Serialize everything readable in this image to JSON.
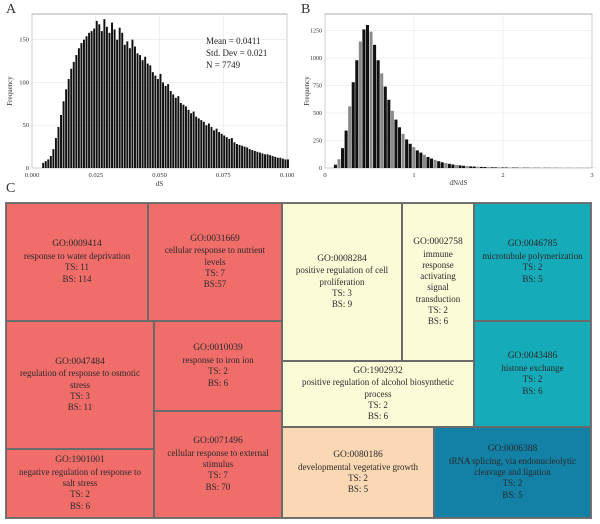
{
  "panels": {
    "a": "A",
    "b": "B",
    "c": "C"
  },
  "chart_data": [
    {
      "type": "bar",
      "panel": "A",
      "xlabel": "dS",
      "ylabel": "Frequency",
      "xlim": [
        0.0,
        0.1
      ],
      "ylim": [
        0,
        180
      ],
      "xticks": [
        "0.000",
        "0.025",
        "0.050",
        "0.075",
        "0.100"
      ],
      "yticks": [
        "0",
        "50",
        "100",
        "150"
      ],
      "annotations": [
        "Mean = 0.0411",
        "Std. Dev = 0.021",
        "N = 7749"
      ],
      "bin_start": 0.004,
      "bin_width": 0.001,
      "values": [
        6,
        8,
        10,
        14,
        22,
        35,
        48,
        62,
        78,
        92,
        104,
        116,
        124,
        132,
        140,
        146,
        150,
        154,
        158,
        160,
        163,
        172,
        168,
        160,
        174,
        165,
        158,
        170,
        162,
        150,
        164,
        158,
        144,
        148,
        140,
        150,
        142,
        134,
        132,
        126,
        130,
        122,
        120,
        112,
        108,
        104,
        110,
        100,
        96,
        98,
        90,
        86,
        82,
        84,
        76,
        74,
        72,
        68,
        64,
        66,
        60,
        58,
        56,
        54,
        50,
        52,
        48,
        44,
        46,
        42,
        40,
        38,
        36,
        34,
        35,
        30,
        28,
        27,
        26,
        25,
        24,
        22,
        21,
        20,
        19,
        18,
        17,
        16,
        16,
        15,
        14,
        13,
        12,
        12,
        11,
        10,
        10
      ]
    },
    {
      "type": "bar",
      "panel": "B",
      "xlabel": "dN/dS",
      "ylabel": "Frequency",
      "xlim": [
        0,
        3
      ],
      "ylim": [
        0,
        1400
      ],
      "xticks": [
        "0",
        "1",
        "2",
        "3"
      ],
      "yticks": [
        "0",
        "250",
        "500",
        "750",
        "1000",
        "1250"
      ],
      "bin_start": 0.1,
      "bin_width": 0.04,
      "values": [
        30,
        80,
        180,
        340,
        560,
        780,
        980,
        1150,
        1260,
        1300,
        1240,
        1120,
        980,
        860,
        740,
        620,
        520,
        440,
        370,
        310,
        260,
        220,
        190,
        160,
        140,
        120,
        100,
        86,
        74,
        62,
        52,
        45,
        38,
        32,
        28,
        24,
        20,
        17,
        15,
        13,
        11,
        10,
        9,
        8,
        7,
        6,
        6,
        5,
        5,
        4,
        4,
        4,
        3,
        3,
        3,
        3,
        2,
        2,
        2,
        2,
        2,
        2,
        2,
        1,
        1,
        1,
        1,
        1,
        1,
        1,
        1,
        1,
        1,
        1
      ]
    }
  ],
  "treemap": {
    "tiles": [
      {
        "id": "GO:0009414",
        "name": "response to water deprivation",
        "ts": "TS: 11",
        "bs": "BS: 114",
        "color": "#f16d6a"
      },
      {
        "id": "GO:0031669",
        "name": "cellular response to nutrient levels",
        "ts": "TS: 7",
        "bs": "BS:57",
        "color": "#f16d6a"
      },
      {
        "id": "GO:0047484",
        "name": "regulation of response to osmotic stress",
        "ts": "TS: 3",
        "bs": "BS: 11",
        "color": "#f16d6a"
      },
      {
        "id": "GO:0010039",
        "name": "response to iron ion",
        "ts": "TS: 2",
        "bs": "BS: 6",
        "color": "#f16d6a"
      },
      {
        "id": "GO:1901001",
        "name": "negative regulation of response to salt stress",
        "ts": "TS: 2",
        "bs": "BS: 6",
        "color": "#f16d6a"
      },
      {
        "id": "GO:0071496",
        "name": "cellular response to external stimulus",
        "ts": "TS: 7",
        "bs": "BS: 70",
        "color": "#f16d6a"
      },
      {
        "id": "GO:0008284",
        "name": "positive regulation of cell proliferation",
        "ts": "TS: 3",
        "bs": "BS: 9",
        "color": "#fcfbd8"
      },
      {
        "id": "GO:0002758",
        "name": "immune response activating signal transduction",
        "ts": "TS: 2",
        "bs": "BS: 6",
        "color": "#fcfbd8"
      },
      {
        "id": "GO:1902932",
        "name": "positive regulation of alcohol biosynthetic process",
        "ts": "TS: 2",
        "bs": "BS: 6",
        "color": "#fcfbd8"
      },
      {
        "id": "GO:0080186",
        "name": "developmental vegetative growth",
        "ts": "TS: 2",
        "bs": "BS: 5",
        "color": "#fbd8b4"
      },
      {
        "id": "GO:0046785",
        "name": "microtubule polymerization",
        "ts": "TS: 2",
        "bs": "BS: 5",
        "color": "#15abb9"
      },
      {
        "id": "GO:0043486",
        "name": "histone exchange",
        "ts": "TS: 2",
        "bs": "BS: 6",
        "color": "#15abb9"
      },
      {
        "id": "GO:0006388",
        "name": "tRNA splicing, via endonucleolytic cleavage and ligation",
        "ts": "TS: 2",
        "bs": "BS: 5",
        "color": "#1380a6"
      }
    ]
  }
}
